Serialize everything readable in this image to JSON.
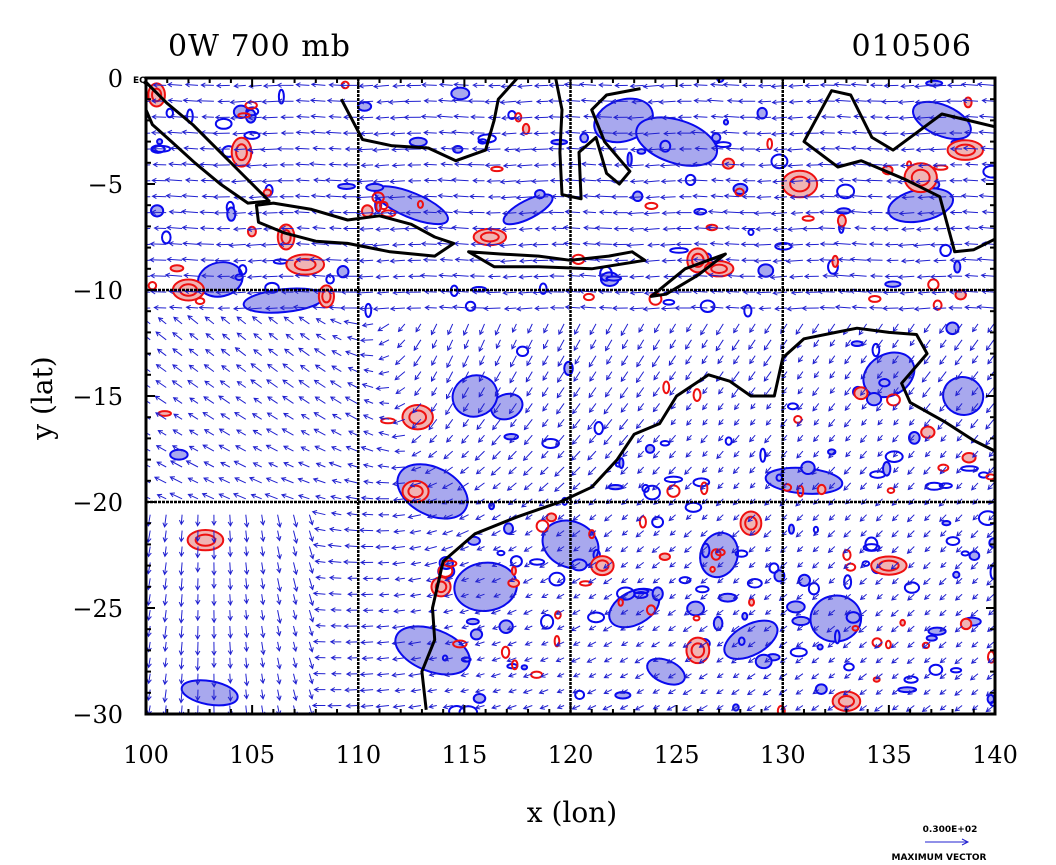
{
  "title_left": "0W 700 mb",
  "title_right": "010506",
  "eq_label": "EQ",
  "axes": {
    "xlabel": "x (lon)",
    "ylabel": "y (lat)",
    "xlim": [
      100,
      140
    ],
    "ylim": [
      -30,
      0
    ],
    "xticks": [
      100,
      105,
      110,
      115,
      120,
      125,
      130,
      135,
      140
    ],
    "yticks": [
      0,
      -5,
      -10,
      -15,
      -20,
      -25,
      -30
    ],
    "grid_x": [
      110,
      120,
      130
    ],
    "grid_y": [
      -10,
      -20
    ]
  },
  "legend": {
    "scale_value": "0.300E+02",
    "label": "MAXIMUM VECTOR"
  },
  "colors": {
    "vector": "#2020d0",
    "negative_fill": "#a8a8ee",
    "negative_line": "#0a0aee",
    "positive_fill": "#f0b4b4",
    "positive_line": "#ee1010",
    "coast": "#000000"
  },
  "chart_data": {
    "type": "vector-contour map",
    "field": "700 mb wind vectors with positive (red) and negative (blue) contours",
    "region": "Maritime Continent / Northern Australia",
    "lon_range": [
      100,
      140
    ],
    "lat_range": [
      -30,
      0
    ],
    "coastlines": {
      "australia": [
        [
          113.2,
          -29.8
        ],
        [
          113.0,
          -28
        ],
        [
          113.6,
          -26.5
        ],
        [
          113.5,
          -25
        ],
        [
          114.0,
          -22.8
        ],
        [
          115.5,
          -21.5
        ],
        [
          117.5,
          -20.7
        ],
        [
          119.5,
          -20
        ],
        [
          121,
          -19.3
        ],
        [
          122.2,
          -18
        ],
        [
          123,
          -16.8
        ],
        [
          124.2,
          -16.3
        ],
        [
          125,
          -15
        ],
        [
          126.5,
          -14
        ],
        [
          127.5,
          -14.3
        ],
        [
          128.5,
          -15
        ],
        [
          129.6,
          -15
        ],
        [
          130,
          -13.2
        ],
        [
          131,
          -12.3
        ],
        [
          132.5,
          -12
        ],
        [
          133.5,
          -11.8
        ],
        [
          135,
          -12
        ],
        [
          136.3,
          -12.1
        ],
        [
          136.8,
          -13
        ],
        [
          135.6,
          -14.4
        ],
        [
          136,
          -15.3
        ],
        [
          137.6,
          -16.2
        ],
        [
          139,
          -17.1
        ],
        [
          140,
          -17.6
        ]
      ],
      "sumatra": [
        [
          100,
          -0.2
        ],
        [
          101,
          -1.2
        ],
        [
          102.2,
          -2.2
        ],
        [
          103.5,
          -3.5
        ],
        [
          104.6,
          -4.6
        ],
        [
          105.8,
          -5.8
        ],
        [
          104.8,
          -5.9
        ],
        [
          103.5,
          -5
        ],
        [
          102.3,
          -4
        ],
        [
          101.2,
          -3
        ],
        [
          100.3,
          -2.2
        ],
        [
          100,
          -1.5
        ]
      ],
      "java": [
        [
          105.2,
          -6
        ],
        [
          106,
          -5.9
        ],
        [
          107.8,
          -6.2
        ],
        [
          109.5,
          -6.7
        ],
        [
          111,
          -6.5
        ],
        [
          112.5,
          -6.9
        ],
        [
          113.6,
          -7.5
        ],
        [
          114.5,
          -7.8
        ],
        [
          113.6,
          -8.4
        ],
        [
          111.5,
          -8.2
        ],
        [
          109.5,
          -7.8
        ],
        [
          108,
          -7.7
        ],
        [
          106.5,
          -7.3
        ],
        [
          105.3,
          -6.8
        ]
      ],
      "lesser_sunda": [
        [
          115.2,
          -8.2
        ],
        [
          116.7,
          -8.3
        ],
        [
          118.5,
          -8.4
        ],
        [
          120,
          -8.6
        ],
        [
          121.8,
          -8.4
        ],
        [
          122.9,
          -8.2
        ],
        [
          123.5,
          -8.6
        ],
        [
          121,
          -9
        ],
        [
          118.5,
          -8.9
        ],
        [
          116.4,
          -8.9
        ]
      ],
      "timor": [
        [
          123.8,
          -10.3
        ],
        [
          125.4,
          -9
        ],
        [
          127.3,
          -8.3
        ],
        [
          126,
          -9.3
        ],
        [
          124.5,
          -10.2
        ]
      ],
      "borneo_south": [
        [
          109.2,
          -1
        ],
        [
          110.2,
          -2.9
        ],
        [
          111.6,
          -3.2
        ],
        [
          113.3,
          -3.3
        ],
        [
          114.6,
          -3.9
        ],
        [
          116,
          -3.4
        ],
        [
          116.4,
          -2
        ],
        [
          116.6,
          -1
        ],
        [
          117.5,
          0
        ]
      ],
      "sulawesi": [
        [
          119.3,
          0
        ],
        [
          119.6,
          -1.5
        ],
        [
          119.5,
          -3.5
        ],
        [
          119.6,
          -5.5
        ],
        [
          120.5,
          -5.7
        ],
        [
          120.4,
          -3.5
        ],
        [
          121.2,
          -2.8
        ],
        [
          121.7,
          -4.5
        ],
        [
          122.3,
          -5
        ],
        [
          122.8,
          -4.4
        ],
        [
          121.6,
          -3
        ],
        [
          121,
          -1.5
        ],
        [
          121.7,
          -0.8
        ],
        [
          123.3,
          -0.5
        ]
      ],
      "new_guinea": [
        [
          132.3,
          -0.6
        ],
        [
          133.2,
          -0.8
        ],
        [
          134.2,
          -2.8
        ],
        [
          135.2,
          -3.4
        ],
        [
          137.5,
          -1.7
        ],
        [
          140,
          -2.3
        ],
        [
          140,
          -7.6
        ],
        [
          139,
          -8.1
        ],
        [
          138.1,
          -8.2
        ],
        [
          137.4,
          -5.6
        ],
        [
          135.8,
          -4.8
        ],
        [
          133.7,
          -3.9
        ],
        [
          132.6,
          -4.2
        ],
        [
          131,
          -3
        ]
      ]
    },
    "positive_regions": [
      [
        106.6,
        -7.5
      ],
      [
        107.5,
        -8.8
      ],
      [
        108.5,
        -10.3
      ],
      [
        102,
        -10
      ],
      [
        112.8,
        -16
      ],
      [
        112.7,
        -19.5
      ],
      [
        116.2,
        -7.5
      ],
      [
        126,
        -8.6
      ],
      [
        127,
        -9
      ],
      [
        130.8,
        -5
      ],
      [
        136.5,
        -4.7
      ],
      [
        138.6,
        -3.4
      ],
      [
        133,
        -29.4
      ],
      [
        128.5,
        -21
      ],
      [
        126,
        -27
      ],
      [
        113.9,
        -24
      ],
      [
        121.5,
        -23
      ],
      [
        135,
        -23
      ],
      [
        102.8,
        -21.8
      ],
      [
        100.5,
        -0.8
      ],
      [
        104.5,
        -3.5
      ]
    ],
    "negative_regions": [
      [
        103.5,
        -9.5
      ],
      [
        106.5,
        -10.5
      ],
      [
        112.5,
        -6
      ],
      [
        118,
        -6.2
      ],
      [
        122.5,
        -2
      ],
      [
        125,
        -3
      ],
      [
        113.5,
        -19.5
      ],
      [
        117,
        -15.5
      ],
      [
        115.5,
        -15
      ],
      [
        123,
        -25
      ],
      [
        127,
        -22.5
      ],
      [
        131,
        -19
      ],
      [
        135,
        -14
      ],
      [
        136.5,
        -6
      ],
      [
        138.5,
        -15
      ],
      [
        124.5,
        -28
      ],
      [
        128.5,
        -26.5
      ],
      [
        132.5,
        -25.5
      ],
      [
        120,
        -22
      ],
      [
        116,
        -24
      ],
      [
        103,
        -29
      ],
      [
        113.5,
        -27
      ],
      [
        137.5,
        -2
      ]
    ]
  }
}
